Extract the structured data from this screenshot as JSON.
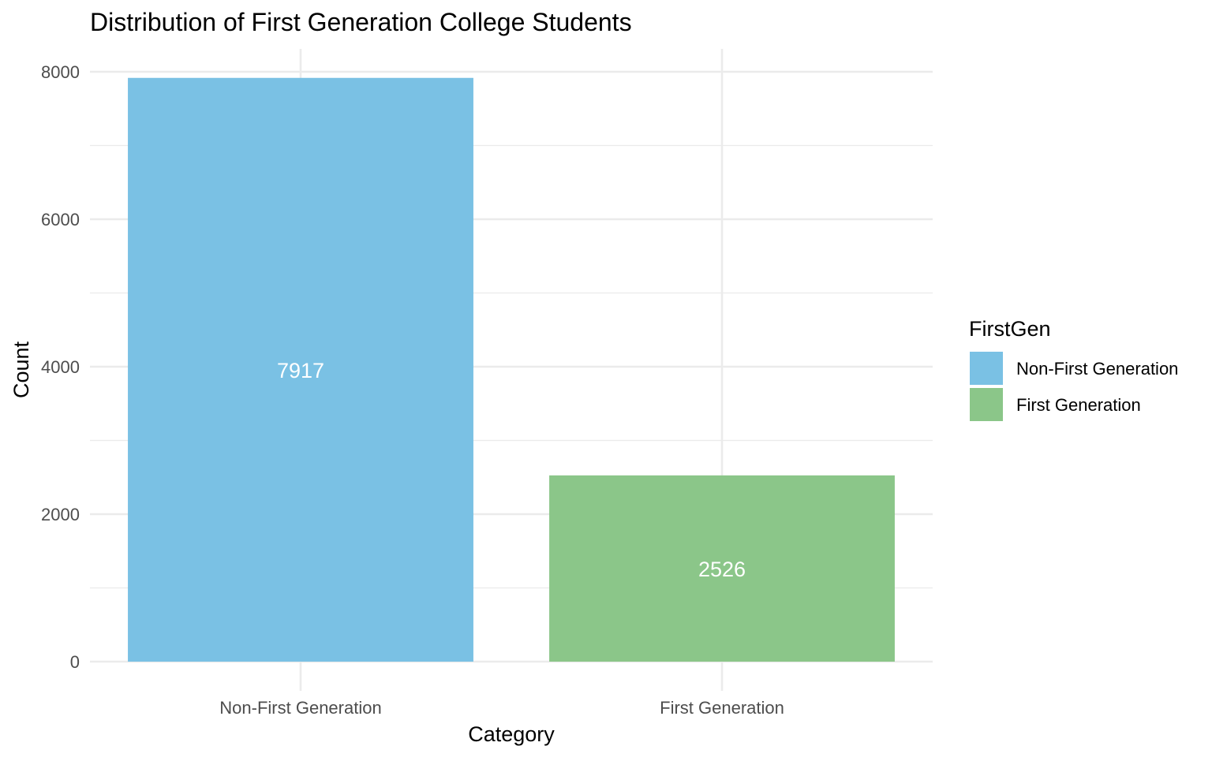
{
  "chart_data": {
    "type": "bar",
    "title": "Distribution of First Generation College Students",
    "xlabel": "Category",
    "ylabel": "Count",
    "categories": [
      "Non-First Generation",
      "First Generation"
    ],
    "values": [
      7917,
      2526
    ],
    "data_labels": [
      "7917",
      "2526"
    ],
    "colors": [
      "#7ac1e4",
      "#8bc689"
    ],
    "ylim": [
      0,
      8300
    ],
    "yticks": [
      0,
      2000,
      4000,
      6000,
      8000
    ],
    "ytick_labels": [
      "0",
      "2000",
      "4000",
      "6000",
      "8000"
    ],
    "grid": true,
    "legend": {
      "title": "FirstGen",
      "position": "right",
      "entries": [
        "Non-First Generation",
        "First Generation"
      ]
    }
  }
}
